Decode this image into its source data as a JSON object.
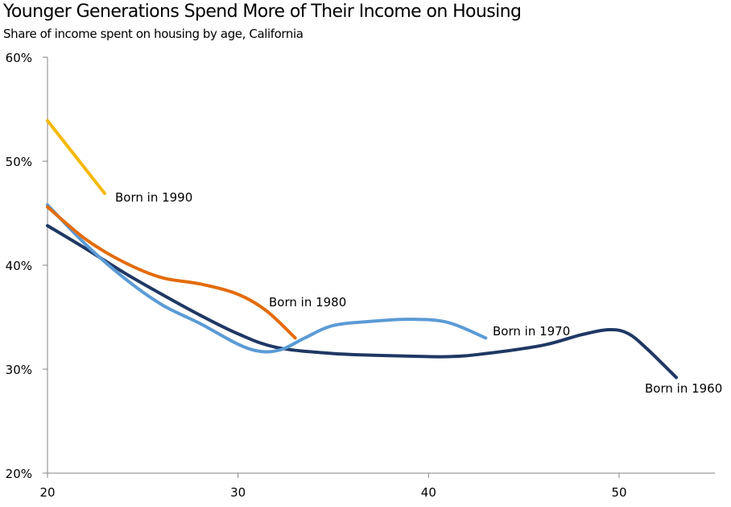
{
  "chart_data": {
    "type": "line",
    "title": "Younger Generations Spend More of Their Income on Housing",
    "subtitle": "Share of income spent on housing by age, California",
    "xlabel": "",
    "ylabel": "",
    "xlim": [
      20,
      55
    ],
    "ylim": [
      20,
      60
    ],
    "x_ticks": [
      20,
      30,
      40,
      50
    ],
    "y_ticks": [
      20,
      30,
      40,
      50,
      60
    ],
    "y_tick_labels": [
      "20%",
      "30%",
      "40%",
      "50%",
      "60%"
    ],
    "x_tick_labels": [
      "20",
      "30",
      "40",
      "50"
    ],
    "grid": false,
    "legend": "inline-labels",
    "series": [
      {
        "name": "Born in 1990",
        "color": "#F5B800",
        "points": [
          [
            20,
            53.9
          ],
          [
            21.5,
            50.4
          ],
          [
            23,
            46.9
          ]
        ]
      },
      {
        "name": "Born in 1980",
        "color": "#E36C0A",
        "points": [
          [
            20,
            45.6
          ],
          [
            22,
            42.5
          ],
          [
            24,
            40.3
          ],
          [
            26,
            38.8
          ],
          [
            28,
            38.2
          ],
          [
            30,
            37.2
          ],
          [
            31.5,
            35.6
          ],
          [
            33,
            33.0
          ]
        ]
      },
      {
        "name": "Born in 1970",
        "color": "#5B9BD5",
        "points": [
          [
            20,
            45.8
          ],
          [
            22,
            42.0
          ],
          [
            24,
            38.8
          ],
          [
            26,
            36.2
          ],
          [
            28,
            34.4
          ],
          [
            30,
            32.4
          ],
          [
            31.2,
            31.7
          ],
          [
            32.3,
            31.9
          ],
          [
            33.5,
            33.0
          ],
          [
            35,
            34.2
          ],
          [
            37,
            34.6
          ],
          [
            39,
            34.8
          ],
          [
            41,
            34.5
          ],
          [
            43,
            33.0
          ]
        ]
      },
      {
        "name": "Born in 1960",
        "color": "#1F3864",
        "points": [
          [
            20,
            43.8
          ],
          [
            22,
            41.6
          ],
          [
            24,
            39.3
          ],
          [
            26,
            37.2
          ],
          [
            28,
            35.2
          ],
          [
            30,
            33.4
          ],
          [
            32,
            32.1
          ],
          [
            35,
            31.5
          ],
          [
            38,
            31.3
          ],
          [
            41,
            31.2
          ],
          [
            43,
            31.5
          ],
          [
            46,
            32.3
          ],
          [
            48,
            33.3
          ],
          [
            49.5,
            33.8
          ],
          [
            50.5,
            33.4
          ],
          [
            51.5,
            31.9
          ],
          [
            53,
            29.2
          ]
        ]
      }
    ]
  }
}
